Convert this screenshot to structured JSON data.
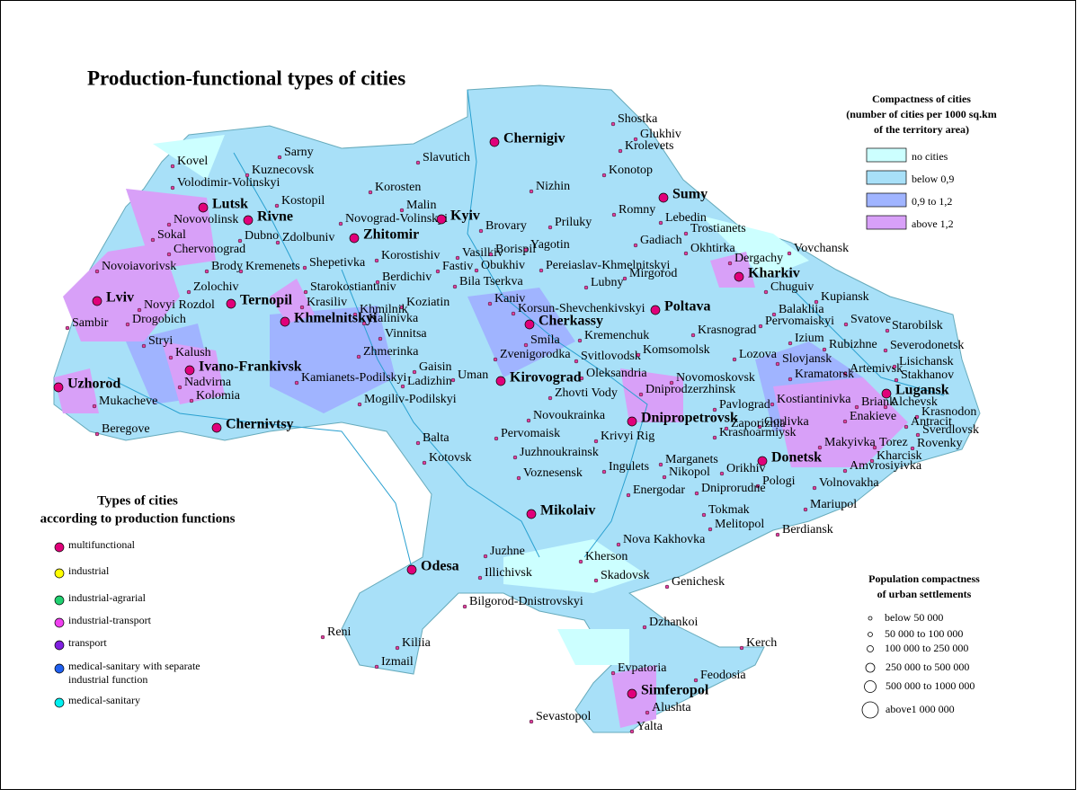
{
  "title": "Production-functional types of cities",
  "compactness_legend": {
    "title_lines": [
      "Compactness of cities",
      "(number of cities per 1000 sq.km",
      "of the territory area)"
    ],
    "items": [
      "no cities",
      "below 0,9",
      "0,9 to 1,2",
      "above 1,2"
    ]
  },
  "types_legend": {
    "title_lines": [
      "Types of cities",
      "according to production functions"
    ],
    "items": [
      [
        "multifunctional"
      ],
      [
        "industrial"
      ],
      [
        "industrial-agrarial"
      ],
      [
        "industrial-transport"
      ],
      [
        "transport"
      ],
      [
        "medical-sanitary with separate",
        "industrial function"
      ],
      [
        "medical-sanitary"
      ]
    ]
  },
  "population_legend": {
    "title_lines": [
      "Population compactness",
      "of urban settlements"
    ],
    "items": [
      "below 50 000",
      "50 000 to 100 000",
      "100 000 to 250 000",
      "250 000 to 500 000",
      "500 000 to 1000 000",
      "above1 000 000"
    ]
  },
  "cities": [
    "Shostka",
    "Glukhiv",
    "Krolevets",
    "Chernigiv",
    "Slavutich",
    "Sarny",
    "Kovel",
    "Kuznecovsk",
    "Volodimir-Volinskyi",
    "Konotop",
    "Nizhin",
    "Sumy",
    "Korosten",
    "Kostopil",
    "Lutsk",
    "Rivne",
    "Malin",
    "Romny",
    "Lebedin",
    "Novovolinsk",
    "Novograd-Volinskyi",
    "Kyiv",
    "Brovary",
    "Priluky",
    "Trostianets",
    "Sokal",
    "Dubno",
    "Zdolbuniv",
    "Zhitomir",
    "Chervonograd",
    "Vasilkiv",
    "Borispil",
    "Yagotin",
    "Gadiach",
    "Okhtirka",
    "Vovchansk",
    "Novoiavorivsk",
    "Brody",
    "Kremenets",
    "Shepetivka",
    "Korostishiv",
    "Fastiv",
    "Obukhiv",
    "Pereiaslav-Khmelnitskyi",
    "Dergachy",
    "Kharkiv",
    "Mirgorod",
    "Zolochiv",
    "Starokostiantiniv",
    "Berdichiv",
    "Bila Tserkva",
    "Lubny",
    "Chuguiv",
    "Lviv",
    "Novyi Rozdol",
    "Ternopil",
    "Krasiliv",
    "Koziatin",
    "Kaniv",
    "Kupiansk",
    "Drogobich",
    "Khmilnik",
    "Korsun-Shevchenkivskyi",
    "Poltava",
    "Sambir",
    "Khmelnitskyi",
    "Kalinivka",
    "Cherkassy",
    "Pervomaiskyi",
    "Svatove",
    "Starobilsk",
    "Stryi",
    "Vinnitsa",
    "Smila",
    "Kremenchuk",
    "Krasnograd",
    "Balakliia",
    "Izium",
    "Rubizhne",
    "Severodonetsk",
    "Kalush",
    "Zhmerinka",
    "Zvenigorodka",
    "Svitlovodsk",
    "Komsomolsk",
    "Lozova",
    "Slovjansk",
    "Artemivsk",
    "Lisichansk",
    "Ivano-Frankivsk",
    "Gaisin",
    "Oleksandria",
    "Kirovograd",
    "Kramatorsk",
    "Stakhanov",
    "Uzhorod",
    "Nadvirna",
    "Kamianets-Podilskyi",
    "Ladizhin",
    "Uman",
    "Novomoskovsk",
    "Kolomia",
    "Zhovti Vody",
    "Dniprodzerzhinsk",
    "Kostiantinivka",
    "Briank",
    "Lugansk",
    "Alchevsk",
    "Mukacheve",
    "Mogiliv-Podilskyi",
    "Pavlograd",
    "Krasnodon",
    "Chernivtsy",
    "Novoukrainka",
    "Dnipropetrovsk",
    "Gorlivka",
    "Enakieve",
    "Antracit",
    "Sverdlovsk",
    "Beregove",
    "Krasnoarmiysk",
    "Zaporizhia",
    "Pervomaisk",
    "Krivyi Rig",
    "Makyivka",
    "Torez",
    "Rovenky",
    "Balta",
    "Juzhnoukrainsk",
    "Marganets",
    "Kharcisk",
    "Donetsk",
    "Kotovsk",
    "Ingulets",
    "Nikopol",
    "Orikhiv",
    "Amvrosiyivka",
    "Voznesensk",
    "Pologi",
    "Volnovakha",
    "Energodar",
    "Dniprorudne",
    "Mariupol",
    "Mikolaiv",
    "Tokmak",
    "Melitopol",
    "Berdiansk",
    "Nova Kakhovka",
    "Juzhne",
    "Kherson",
    "Odesa",
    "Illichivsk",
    "Skadovsk",
    "Genichesk",
    "Bilgorod-Dnistrovskyi",
    "Dzhankoi",
    "Reni",
    "Kiliia",
    "Kerch",
    "Izmail",
    "Evpatoria",
    "Feodosia",
    "Simferopol",
    "Alushta",
    "Sevastopol",
    "Yalta"
  ]
}
